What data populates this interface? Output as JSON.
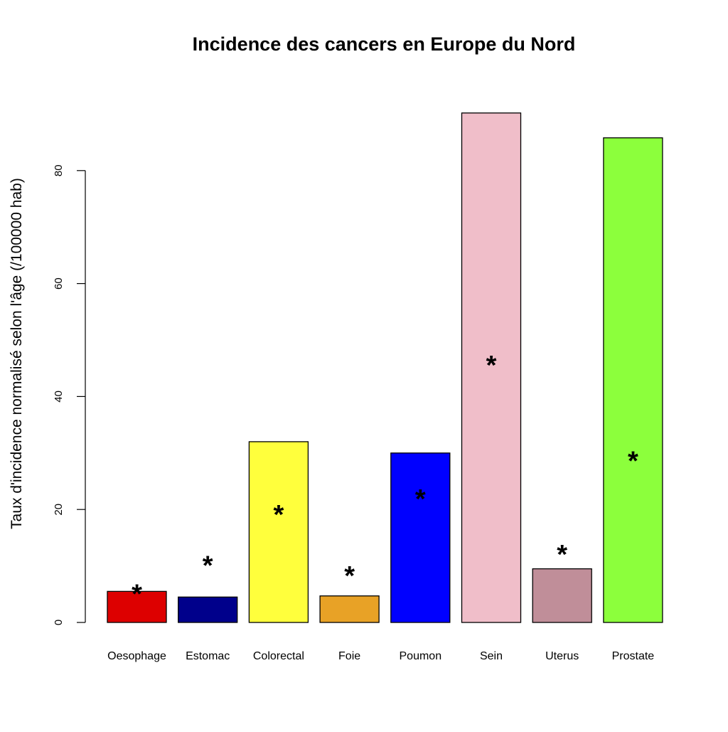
{
  "chart_data": {
    "type": "bar",
    "title": "Incidence des cancers en Europe du Nord",
    "xlabel": "",
    "ylabel": "Taux d'incidence normalisé selon l'âge (/100000 hab)",
    "ylim": [
      0,
      90
    ],
    "yticks": [
      0,
      20,
      40,
      60,
      80
    ],
    "ytick_labels": [
      "0",
      "20",
      "40",
      "60",
      "80"
    ],
    "grid": false,
    "categories": [
      "Oesophage",
      "Estomac",
      "Colorectal",
      "Foie",
      "Poumon",
      "Sein",
      "Uterus",
      "Prostate"
    ],
    "values": [
      5.5,
      4.5,
      32,
      4.7,
      30,
      90.2,
      9.5,
      85.8
    ],
    "colors": [
      "#dd0000",
      "#00008b",
      "#ffff3c",
      "#e8a226",
      "#0000ff",
      "#f0bec9",
      "#c08e99",
      "#8cff3c"
    ],
    "markers": {
      "symbol": "*",
      "values": [
        5.5,
        10.5,
        19.5,
        8.7,
        22.3,
        46,
        12.5,
        29
      ]
    }
  }
}
